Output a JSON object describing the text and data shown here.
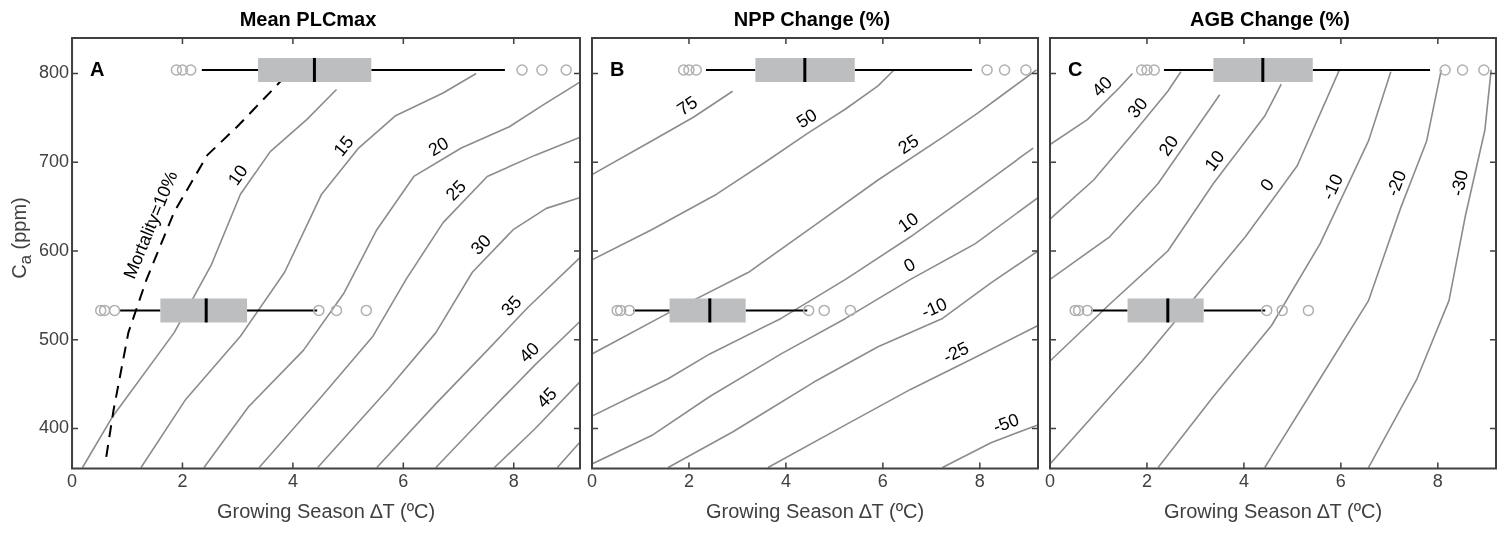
{
  "chart_data": [
    {
      "type": "line",
      "orientation": "horizontal",
      "title": "Mean PLCmax",
      "xlabel": "Growing Season ∆T (ºC)",
      "ylabel": "C$_{a}$ (ppm)",
      "xlim": [
        0,
        9.2
      ],
      "ylim": [
        355,
        840
      ],
      "xticks": [
        0,
        2,
        4,
        6,
        8
      ],
      "yticks": [
        400,
        500,
        600,
        700,
        800
      ],
      "annotations": [
        "A"
      ],
      "series": [
        {
          "name": "Mortality=10%",
          "line_style": "dashed",
          "color": "#000000",
          "values": [
            0.62,
            0.75,
            1.02,
            1.35,
            1.85,
            2.45,
            2.99,
            3.79
          ],
          "x": [
            368,
            420,
            508,
            568,
            644,
            708,
            740,
            792
          ]
        },
        {
          "name": "10",
          "color": "#8c8c8c",
          "values": [
            0.19,
            0.72,
            1.85,
            2.52,
            3.05,
            3.59,
            4.25,
            4.79
          ],
          "x": [
            356,
            412,
            508,
            584,
            664,
            712,
            748,
            782
          ]
        },
        {
          "name": "15",
          "color": "#8c8c8c",
          "values": [
            1.25,
            2.05,
            3.05,
            3.85,
            4.52,
            5.19,
            5.85,
            6.72,
            7.32
          ],
          "x": [
            356,
            432,
            504,
            576,
            664,
            716,
            752,
            778,
            800
          ]
        },
        {
          "name": "20",
          "color": "#8c8c8c",
          "values": [
            2.39,
            3.19,
            4.19,
            4.92,
            5.52,
            6.19,
            7.05,
            7.92,
            8.52,
            9.19
          ],
          "x": [
            356,
            424,
            488,
            552,
            624,
            684,
            716,
            740,
            764,
            790
          ]
        },
        {
          "name": "25",
          "color": "#8c8c8c",
          "values": [
            3.39,
            4.52,
            5.45,
            6.05,
            6.72,
            7.52,
            8.39,
            9.19
          ],
          "x": [
            356,
            436,
            504,
            568,
            632,
            684,
            708,
            728
          ]
        },
        {
          "name": "30",
          "color": "#8c8c8c",
          "values": [
            4.45,
            5.72,
            6.59,
            7.25,
            7.99,
            8.59,
            9.19
          ],
          "x": [
            356,
            444,
            508,
            576,
            624,
            648,
            660
          ]
        },
        {
          "name": "35",
          "color": "#8c8c8c",
          "values": [
            5.52,
            6.59,
            7.52,
            8.25,
            9.19
          ],
          "x": [
            356,
            428,
            488,
            536,
            592
          ]
        },
        {
          "name": "40",
          "color": "#8c8c8c",
          "values": [
            6.59,
            7.45,
            8.39,
            9.19
          ],
          "x": [
            356,
            412,
            472,
            520
          ]
        },
        {
          "name": "45",
          "color": "#8c8c8c",
          "values": [
            7.65,
            8.39,
            9.19
          ],
          "x": [
            356,
            400,
            452
          ]
        },
        {
          "color": "#8c8c8c",
          "values": [
            8.79,
            9.19
          ],
          "x": [
            356,
            384
          ]
        },
        {
          "type": "box",
          "x": [
            804,
            533
          ],
          "boxes": [
            {
              "low": 2.35,
              "q1": 3.37,
              "median": 4.39,
              "q3": 5.42,
              "high": 7.84,
              "outliers": [
                1.89,
                2.0,
                2.15,
                8.15,
                8.51,
                8.95
              ]
            },
            {
              "low": 0.85,
              "q1": 1.6,
              "median": 2.43,
              "q3": 3.17,
              "high": 4.44,
              "outliers": [
                0.52,
                0.59,
                0.77,
                4.47,
                4.79,
                5.33
              ]
            }
          ]
        }
      ]
    },
    {
      "type": "line",
      "orientation": "horizontal",
      "title": "NPP Change (%)",
      "xlabel": "Growing Season ∆T (ºC)",
      "xlim": [
        0,
        9.2
      ],
      "ylim": [
        355,
        840
      ],
      "xticks": [
        0,
        2,
        4,
        6,
        8
      ],
      "yticks": [
        400,
        500,
        600,
        700,
        800
      ],
      "tick_labels": "x",
      "annotations": [
        "B"
      ],
      "series": [
        {
          "name": "75",
          "color": "#8c8c8c",
          "values": [
            0,
            1.23,
            2.1,
            2.9
          ],
          "x": [
            686,
            724,
            751,
            780
          ]
        },
        {
          "name": "50",
          "color": "#8c8c8c",
          "values": [
            0,
            1.23,
            2.57,
            3.57,
            4.43,
            5.23,
            5.9,
            6.23
          ],
          "x": [
            590,
            624,
            664,
            700,
            732,
            760,
            786,
            804
          ]
        },
        {
          "name": "25",
          "color": "#8c8c8c",
          "values": [
            0,
            1.57,
            3.23,
            4.57,
            5.9,
            7.23,
            7.97,
            8.57,
            9.17
          ],
          "x": [
            484,
            530,
            576,
            628,
            680,
            728,
            756,
            780,
            804
          ]
        },
        {
          "name": "10",
          "color": "#8c8c8c",
          "values": [
            0,
            1.57,
            2.43,
            3.9,
            5.23,
            6.57,
            7.9,
            9.1
          ],
          "x": [
            414,
            456,
            484,
            524,
            568,
            616,
            668,
            716
          ]
        },
        {
          "name": "0",
          "color": "#8c8c8c",
          "values": [
            0,
            1.23,
            2.43,
            3.9,
            5.23,
            6.57,
            7.9,
            9.2
          ],
          "x": [
            360,
            392,
            436,
            484,
            524,
            568,
            608,
            660
          ]
        },
        {
          "name": "-10",
          "color": "#8c8c8c",
          "values": [
            1.57,
            2.9,
            4.57,
            5.9,
            7.23,
            8.23,
            9.2
          ],
          "x": [
            356,
            396,
            452,
            492,
            524,
            564,
            600
          ]
        },
        {
          "name": "-25",
          "color": "#8c8c8c",
          "values": [
            3.63,
            5.23,
            6.57,
            7.9,
            9.2
          ],
          "x": [
            356,
            404,
            444,
            480,
            516
          ]
        },
        {
          "name": "-50",
          "color": "#8c8c8c",
          "values": [
            7.23,
            8.23,
            9.2
          ],
          "x": [
            356,
            384,
            404
          ]
        },
        {
          "type": "box",
          "x": [
            804,
            533
          ],
          "boxes": [
            {
              "low": 2.35,
              "q1": 3.37,
              "median": 4.39,
              "q3": 5.42,
              "high": 7.84,
              "outliers": [
                1.89,
                2.0,
                2.15,
                8.15,
                8.51,
                8.95
              ]
            },
            {
              "low": 0.85,
              "q1": 1.6,
              "median": 2.43,
              "q3": 3.17,
              "high": 4.44,
              "outliers": [
                0.52,
                0.59,
                0.77,
                4.47,
                4.79,
                5.33
              ]
            }
          ]
        }
      ]
    },
    {
      "type": "line",
      "orientation": "horizontal",
      "title": "AGB Change (%)",
      "xlabel": "Growing Season ∆T (ºC)",
      "xlim": [
        0,
        9.2
      ],
      "ylim": [
        355,
        840
      ],
      "xticks": [
        0,
        2,
        4,
        6,
        8
      ],
      "yticks": [
        400,
        500,
        600,
        700,
        800
      ],
      "tick_labels": "x",
      "annotations": [
        "C"
      ],
      "series": [
        {
          "name": "40",
          "color": "#8c8c8c",
          "values": [
            0,
            0.77,
            1.43,
            1.7
          ],
          "x": [
            720,
            748,
            784,
            800
          ]
        },
        {
          "name": "30",
          "color": "#8c8c8c",
          "values": [
            0,
            0.9,
            1.77,
            2.43,
            2.7
          ],
          "x": [
            636,
            680,
            736,
            780,
            802
          ]
        },
        {
          "name": "20",
          "color": "#8c8c8c",
          "values": [
            0,
            1.23,
            2.23,
            3.5
          ],
          "x": [
            568,
            616,
            676,
            776
          ]
        },
        {
          "name": "10",
          "color": "#8c8c8c",
          "values": [
            0,
            1.23,
            2.43,
            3.37,
            4.43,
            4.77
          ],
          "x": [
            476,
            540,
            600,
            676,
            752,
            788
          ]
        },
        {
          "name": "0",
          "color": "#8c8c8c",
          "values": [
            0,
            1.9,
            4.03,
            5.1,
            5.97
          ],
          "x": [
            360,
            476,
            616,
            696,
            804
          ]
        },
        {
          "name": "-10",
          "color": "#8c8c8c",
          "values": [
            2.23,
            3.37,
            4.57,
            5.57,
            6.57,
            7.03
          ],
          "x": [
            356,
            436,
            516,
            608,
            724,
            802
          ]
        },
        {
          "name": "-20",
          "color": "#8c8c8c",
          "values": [
            4.43,
            5.57,
            6.57,
            7.23,
            7.77,
            8.07
          ],
          "x": [
            356,
            456,
            544,
            648,
            724,
            804
          ]
        },
        {
          "name": "-30",
          "color": "#8c8c8c",
          "values": [
            6.57,
            7.57,
            8.23,
            8.57,
            8.97,
            9.1
          ],
          "x": [
            356,
            456,
            544,
            640,
            736,
            804
          ]
        },
        {
          "type": "box",
          "x": [
            804,
            533
          ],
          "boxes": [
            {
              "low": 2.35,
              "q1": 3.37,
              "median": 4.39,
              "q3": 5.42,
              "high": 7.84,
              "outliers": [
                1.89,
                2.0,
                2.15,
                8.15,
                8.51,
                8.95
              ]
            },
            {
              "low": 0.85,
              "q1": 1.6,
              "median": 2.43,
              "q3": 3.17,
              "high": 4.44,
              "outliers": [
                0.52,
                0.59,
                0.77,
                4.47,
                4.79,
                5.33
              ]
            }
          ]
        }
      ]
    }
  ]
}
